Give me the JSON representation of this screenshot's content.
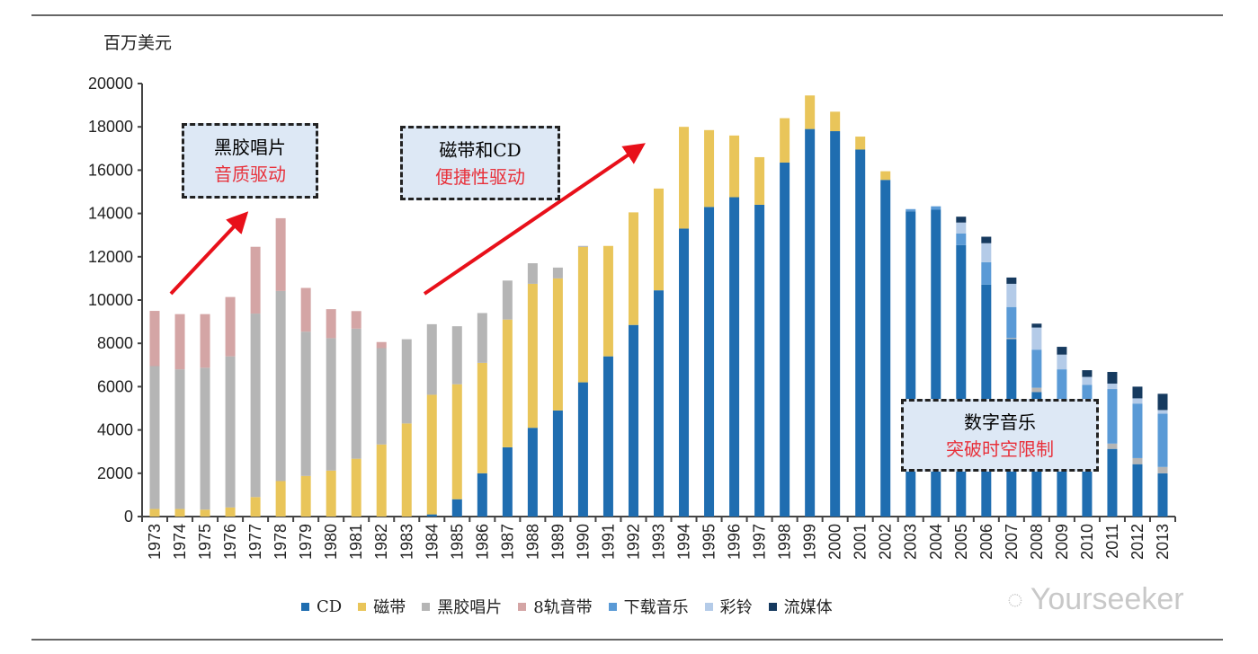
{
  "chart_data": {
    "type": "bar",
    "stacked": true,
    "unit_label": "百万美元",
    "ylim": [
      0,
      20000
    ],
    "yticks": [
      0,
      2000,
      4000,
      6000,
      8000,
      10000,
      12000,
      14000,
      16000,
      18000,
      20000
    ],
    "grid": false,
    "legend_position": "bottom",
    "categories": [
      "1973",
      "1974",
      "1975",
      "1976",
      "1977",
      "1978",
      "1979",
      "1980",
      "1981",
      "1982",
      "1983",
      "1984",
      "1985",
      "1986",
      "1987",
      "1988",
      "1989",
      "1990",
      "1991",
      "1992",
      "1993",
      "1994",
      "1995",
      "1996",
      "1997",
      "1998",
      "1999",
      "2000",
      "2001",
      "2002",
      "2003",
      "2004",
      "2005",
      "2006",
      "2007",
      "2008",
      "2009",
      "2010",
      "2011",
      "2012",
      "2013"
    ],
    "series": [
      {
        "name": "CD",
        "color": "#1f6db0",
        "values": [
          0,
          0,
          0,
          0,
          0,
          0,
          0,
          0,
          0,
          0,
          0,
          100,
          800,
          2000,
          3200,
          4100,
          4900,
          6200,
          7400,
          8850,
          10450,
          13300,
          14300,
          14750,
          14400,
          16350,
          17900,
          17800,
          16950,
          15550,
          14100,
          14170,
          12540,
          10710,
          8200,
          5750,
          4300,
          3400,
          3125,
          2420,
          2000
        ]
      },
      {
        "name": "磁带",
        "color": "#e9c55a",
        "values": [
          350,
          350,
          320,
          420,
          900,
          1640,
          1875,
          2125,
          2670,
          3330,
          4300,
          5525,
          5310,
          5100,
          5900,
          6650,
          6100,
          6250,
          5100,
          5200,
          4700,
          4700,
          3550,
          2850,
          2200,
          2050,
          1550,
          900,
          600,
          400,
          0,
          0,
          0,
          0,
          0,
          0,
          0,
          0,
          0,
          0,
          0
        ]
      },
      {
        "name": "黑胶唱片",
        "color": "#b5b5b5",
        "values": [
          6600,
          6450,
          6555,
          6980,
          8475,
          8780,
          6665,
          6115,
          6010,
          4450,
          3890,
          3260,
          2680,
          2300,
          1800,
          950,
          500,
          50,
          0,
          0,
          0,
          0,
          0,
          0,
          0,
          0,
          0,
          0,
          0,
          0,
          0,
          0,
          0,
          0,
          50,
          200,
          100,
          100,
          245,
          280,
          290
        ]
      },
      {
        "name": "8轨音带",
        "color": "#d4a5a5",
        "values": [
          2550,
          2550,
          2475,
          2740,
          3085,
          3360,
          2020,
          1340,
          810,
          280,
          0,
          0,
          0,
          0,
          0,
          0,
          0,
          0,
          0,
          0,
          0,
          0,
          0,
          0,
          0,
          0,
          0,
          0,
          0,
          0,
          0,
          0,
          0,
          0,
          0,
          0,
          0,
          0,
          0,
          0,
          0
        ]
      },
      {
        "name": "下载音乐",
        "color": "#5a9ad6",
        "values": [
          0,
          0,
          0,
          0,
          0,
          0,
          0,
          0,
          0,
          0,
          0,
          0,
          0,
          0,
          0,
          0,
          0,
          0,
          0,
          0,
          0,
          0,
          0,
          0,
          0,
          0,
          0,
          0,
          0,
          0,
          100,
          160,
          540,
          1040,
          1430,
          1760,
          2400,
          2580,
          2520,
          2520,
          2460
        ]
      },
      {
        "name": "彩铃",
        "color": "#b4cbe8",
        "values": [
          0,
          0,
          0,
          0,
          0,
          0,
          0,
          0,
          0,
          0,
          0,
          0,
          0,
          0,
          0,
          0,
          0,
          0,
          0,
          0,
          0,
          0,
          0,
          0,
          0,
          0,
          0,
          0,
          0,
          0,
          0,
          0,
          500,
          875,
          1070,
          1020,
          680,
          370,
          250,
          240,
          170
        ]
      },
      {
        "name": "流媒体",
        "color": "#163a5f",
        "values": [
          0,
          0,
          0,
          0,
          0,
          0,
          0,
          0,
          0,
          0,
          0,
          0,
          0,
          0,
          0,
          0,
          0,
          0,
          0,
          0,
          0,
          0,
          0,
          0,
          0,
          0,
          0,
          0,
          0,
          0,
          0,
          0,
          270,
          300,
          290,
          180,
          360,
          310,
          540,
          540,
          750
        ]
      }
    ],
    "annotations": [
      {
        "line1": "黑胶唱片",
        "line2": "音质驱动"
      },
      {
        "line1": "磁带和CD",
        "line2": "便捷性驱动"
      },
      {
        "line1": "数字音乐",
        "line2": "突破时空限制"
      }
    ],
    "accent_color": "#e8303a"
  },
  "watermark": "Yourseeker"
}
